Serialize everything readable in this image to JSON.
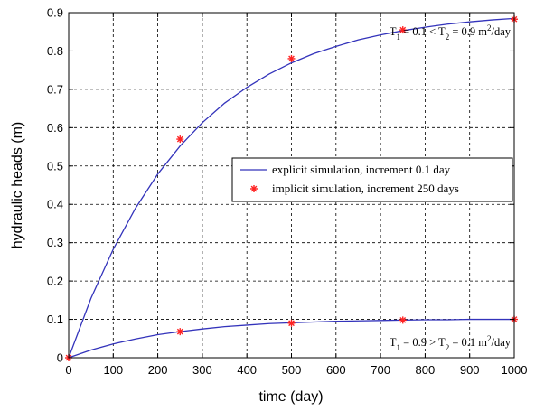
{
  "chart_data": {
    "type": "line",
    "xlabel": "time (day)",
    "ylabel": "hydraulic heads (m)",
    "xlim": [
      0,
      1000
    ],
    "ylim": [
      0,
      0.9
    ],
    "x_ticks": [
      0,
      100,
      200,
      300,
      400,
      500,
      600,
      700,
      800,
      900,
      1000
    ],
    "y_ticks": [
      0,
      0.1,
      0.2,
      0.3,
      0.4,
      0.5,
      0.6,
      0.7,
      0.8,
      0.9
    ],
    "grid": true,
    "legend_position": "center-right",
    "series": [
      {
        "name": "explicit simulation, increment 0.1 day",
        "style": "line",
        "color": "#3333bb",
        "groups": [
          {
            "x": [
              0,
              50,
              100,
              150,
              200,
              250,
              300,
              350,
              400,
              450,
              500,
              550,
              600,
              650,
              700,
              750,
              800,
              850,
              900,
              950,
              1000
            ],
            "y": [
              0.0,
              0.155,
              0.283,
              0.39,
              0.479,
              0.552,
              0.613,
              0.664,
              0.705,
              0.74,
              0.769,
              0.793,
              0.812,
              0.829,
              0.842,
              0.853,
              0.862,
              0.87,
              0.876,
              0.881,
              0.885
            ]
          },
          {
            "x": [
              0,
              50,
              100,
              150,
              200,
              250,
              300,
              350,
              400,
              450,
              500,
              550,
              600,
              650,
              700,
              750,
              800,
              850,
              900,
              950,
              1000
            ],
            "y": [
              0.0,
              0.02,
              0.036,
              0.049,
              0.06,
              0.068,
              0.075,
              0.081,
              0.085,
              0.089,
              0.091,
              0.093,
              0.095,
              0.096,
              0.097,
              0.098,
              0.099,
              0.099,
              0.1,
              0.1,
              0.1
            ]
          }
        ]
      },
      {
        "name": "implicit simulation, increment 250 days",
        "style": "marker",
        "color": "#ff2222",
        "groups": [
          {
            "x": [
              0,
              250,
              500,
              750,
              1000
            ],
            "y": [
              0.0,
              0.57,
              0.78,
              0.855,
              0.883
            ]
          },
          {
            "x": [
              250,
              500,
              750,
              1000
            ],
            "y": [
              0.068,
              0.09,
              0.098,
              0.1
            ]
          }
        ]
      }
    ],
    "annotations": [
      {
        "parts": [
          "T",
          "1",
          " = 0.1 < T",
          "2",
          " = 0.9 m",
          "2",
          "/day"
        ],
        "x": 1000,
        "y": 0.85,
        "anchor": "end"
      },
      {
        "parts": [
          "T",
          "1",
          " = 0.9 > T",
          "2",
          " = 0.1 m",
          "2",
          "/day"
        ],
        "x": 1000,
        "y": 0.04,
        "anchor": "end"
      }
    ]
  }
}
